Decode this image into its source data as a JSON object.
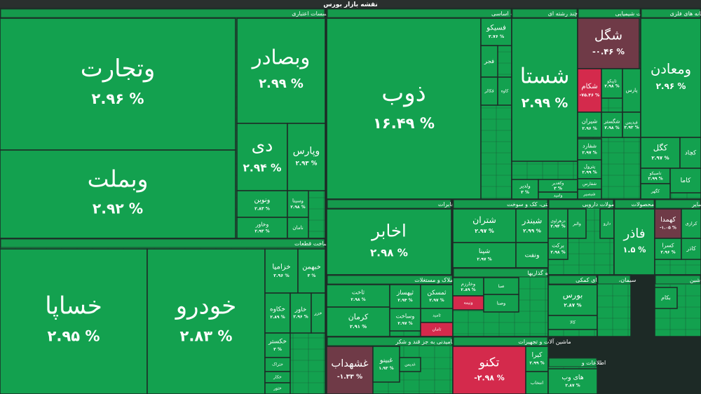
{
  "chart_data": {
    "type": "treemap",
    "title": "نقشه بازار بورس",
    "sectors": [
      {
        "name": "بانکها و موسسات اعتباری",
        "tiles": [
          {
            "name": "وتجارت",
            "value": 2.96,
            "value_label": "۲.۹۶ %"
          },
          {
            "name": "وبملت",
            "value": 2.92,
            "value_label": "۲.۹۲ %"
          },
          {
            "name": "وبصادر",
            "value": 2.99,
            "value_label": "۲.۹۹ %"
          },
          {
            "name": "دی",
            "value": 2.94,
            "value_label": "۲.۹۴ %"
          },
          {
            "name": "وپارس",
            "value": 2.93,
            "value_label": "۲.۹۳ %"
          },
          {
            "name": "ونوین",
            "value": 2.83,
            "value_label": "۲.۸۳ %"
          },
          {
            "name": "وسینا",
            "value": 2.98,
            "value_label": "۲.۹۸ %"
          },
          {
            "name": "وخاور",
            "value": 2.93,
            "value_label": "۲.۹۳ %"
          },
          {
            "name": "نامان"
          }
        ]
      },
      {
        "name": "خودرو و ساخت قطعات",
        "tiles": [
          {
            "name": "خساپا",
            "value": 2.95,
            "value_label": "۲.۹۵ %"
          },
          {
            "name": "خودرو",
            "value": 2.83,
            "value_label": "۲.۸۳ %"
          },
          {
            "name": "خزامیا",
            "value": 2.96,
            "value_label": "۲.۹۶ %"
          },
          {
            "name": "خبهمن",
            "value": 3,
            "value_label": "۳ %"
          },
          {
            "name": "خکاوه",
            "value": 2.89,
            "value_label": "۲.۸۹ %"
          },
          {
            "name": "خاور",
            "value": 2.96,
            "value_label": "۲.۹۶ %"
          },
          {
            "name": "خزر"
          },
          {
            "name": "خکستر",
            "value": 3,
            "value_label": "۳ %"
          },
          {
            "name": "ختراک"
          },
          {
            "name": "خکار"
          },
          {
            "name": "ختور"
          }
        ]
      },
      {
        "name": "فلزات اساسی",
        "tiles": [
          {
            "name": "ذوب",
            "value": 16.49,
            "value_label": "۱۶.۴۹ %"
          },
          {
            "name": "فسیکو",
            "value": 2.76,
            "value_label": "۲.۷۶ %"
          },
          {
            "name": "فجر"
          },
          {
            "name": "فکالر"
          },
          {
            "name": "کاوه"
          }
        ]
      },
      {
        "name": "شرکتهای چند رشته ای",
        "tiles": [
          {
            "name": "شستا",
            "value": 2.99,
            "value_label": "۲.۹۹ %"
          },
          {
            "name": "ولدیر",
            "value": 3,
            "value_label": "۳ %"
          },
          {
            "name": "وکغدیر",
            "value": 3,
            "value_label": "۳ %"
          },
          {
            "name": "وامید"
          }
        ]
      },
      {
        "name": "محصولات شیمیایی",
        "tiles": [
          {
            "name": "شگل",
            "value": -0.46,
            "value_label": "-۰.۴۶ %"
          },
          {
            "name": "شکام",
            "value": -75.46,
            "value_label": "-۷۵.۴۶ %"
          },
          {
            "name": "تاپیکو",
            "value": 2.98,
            "value_label": "۲.۹۸ %"
          },
          {
            "name": "پارس"
          },
          {
            "name": "شیران",
            "value": 2.96,
            "value_label": "۲.۹۶ %"
          },
          {
            "name": "شگستر",
            "value": 2.98,
            "value_label": "۲.۹۸ %"
          },
          {
            "name": "فبدیس",
            "value": 2.92,
            "value_label": "۲.۹۲ %"
          },
          {
            "name": "شفارد",
            "value": 2.97,
            "value_label": "۲.۹۷ %"
          },
          {
            "name": "پترول",
            "value": 2.99,
            "value_label": "۲.۹۹ %"
          },
          {
            "name": "شفارس"
          },
          {
            "name": "شبصیر"
          }
        ]
      },
      {
        "name": "استخراج کانه های فلزی",
        "tiles": [
          {
            "name": "ومعادن",
            "value": 2.96,
            "value_label": "۲.۹۶ %"
          },
          {
            "name": "کگل",
            "value": 2.97,
            "value_label": "۲.۹۷ %"
          },
          {
            "name": "کچاد"
          },
          {
            "name": "تاصیکو",
            "value": 2.99,
            "value_label": "۲.۹۹ %"
          },
          {
            "name": "کاما"
          },
          {
            "name": "کگهر"
          }
        ]
      },
      {
        "name": "مخابرات",
        "tiles": [
          {
            "name": "اخابر",
            "value": 2.98,
            "value_label": "۲.۹۸ %"
          }
        ]
      },
      {
        "name": "انبوه سازی، املاک و مستغلات",
        "tiles": [
          {
            "name": "ثاخت",
            "value": 2.98,
            "value_label": "۲.۹۸ %"
          },
          {
            "name": "ثپهساز",
            "value": 2.94,
            "value_label": "۲.۹۴ %"
          },
          {
            "name": "ثمسکن",
            "value": 2.97,
            "value_label": "۲.۹۷ %"
          },
          {
            "name": "کرمان",
            "value": 2.91,
            "value_label": "۲.۹۱ %"
          },
          {
            "name": "ثامید"
          },
          {
            "name": "وساخت",
            "value": 2.97,
            "value_label": "۲.۹۷ %"
          },
          {
            "name": "تامان",
            "color": "#d42a4c"
          }
        ]
      },
      {
        "name": "محصولات غذایی و آشامیدنی به جز قند و شکر",
        "tiles": [
          {
            "name": "غشهداب",
            "value": -1.33,
            "value_label": "-۱.۳۳ %"
          },
          {
            "name": "غبینو",
            "value": 1.93,
            "value_label": "۱.۹۳ %"
          },
          {
            "name": "غدیس"
          }
        ]
      },
      {
        "name": "فراورده های نفتی، کک و سوخت",
        "tiles": [
          {
            "name": "شتران",
            "value": 2.97,
            "value_label": "۲.۹۷ %"
          },
          {
            "name": "شبندر",
            "value": 2.99,
            "value_label": "۲.۹۹ %"
          },
          {
            "name": "شپنا",
            "value": 2.97,
            "value_label": "۲.۹۷ %"
          },
          {
            "name": "ونفت"
          }
        ]
      },
      {
        "name": "سرمایه گذاریها",
        "tiles": [
          {
            "name": "وخارزم",
            "value": 2.89,
            "value_label": "۲.۸۹ %"
          },
          {
            "name": "ونیمه",
            "color": "#d42a4c"
          },
          {
            "name": "صبا"
          },
          {
            "name": "وصنا"
          }
        ]
      },
      {
        "name": "ماشین آلات و تجهیزات",
        "tiles": [
          {
            "name": "تکنو",
            "value": -2.98,
            "value_label": "-۲.۹۸ %"
          },
          {
            "name": "کیرا",
            "value": 2.99,
            "value_label": "۲.۹۹ %"
          },
          {
            "name": "انتخاب"
          }
        ]
      },
      {
        "name": "مواد و محصولات دارویی",
        "tiles": [
          {
            "name": "دزهراوی",
            "value": 2.94,
            "value_label": "۲.۹۴ %"
          },
          {
            "name": "والبر"
          },
          {
            "name": "دارو"
          },
          {
            "name": "برکت",
            "value": 2.98,
            "value_label": "۲.۹۸ %"
          }
        ]
      },
      {
        "name": "ساخت محصولات",
        "tiles": [
          {
            "name": "فاذر",
            "value": 1.5,
            "value_label": "۱.۵ %"
          }
        ]
      },
      {
        "name": "سایر",
        "tiles": [
          {
            "name": "کهمدا",
            "value": -1.05,
            "value_label": "-۱.۰۵ %"
          },
          {
            "name": "کرازی"
          },
          {
            "name": "کسرا",
            "value": 2.96,
            "value_label": "۲.۹۶ %"
          },
          {
            "name": "کاذر"
          }
        ]
      },
      {
        "name": "فعالیتهای کمکی",
        "tiles": [
          {
            "name": "بورس",
            "value": 2.87,
            "value_label": "۲.۸۷ %"
          },
          {
            "name": "کالا"
          }
        ]
      },
      {
        "name": "سیمان،",
        "tiles": []
      },
      {
        "name": "ماشین",
        "tiles": [
          {
            "name": "بکام"
          }
        ]
      },
      {
        "name": "اطلاعات و",
        "tiles": [
          {
            "name": "های وب",
            "value": 2.87,
            "value_label": "۲.۸۷ %"
          }
        ]
      }
    ]
  }
}
